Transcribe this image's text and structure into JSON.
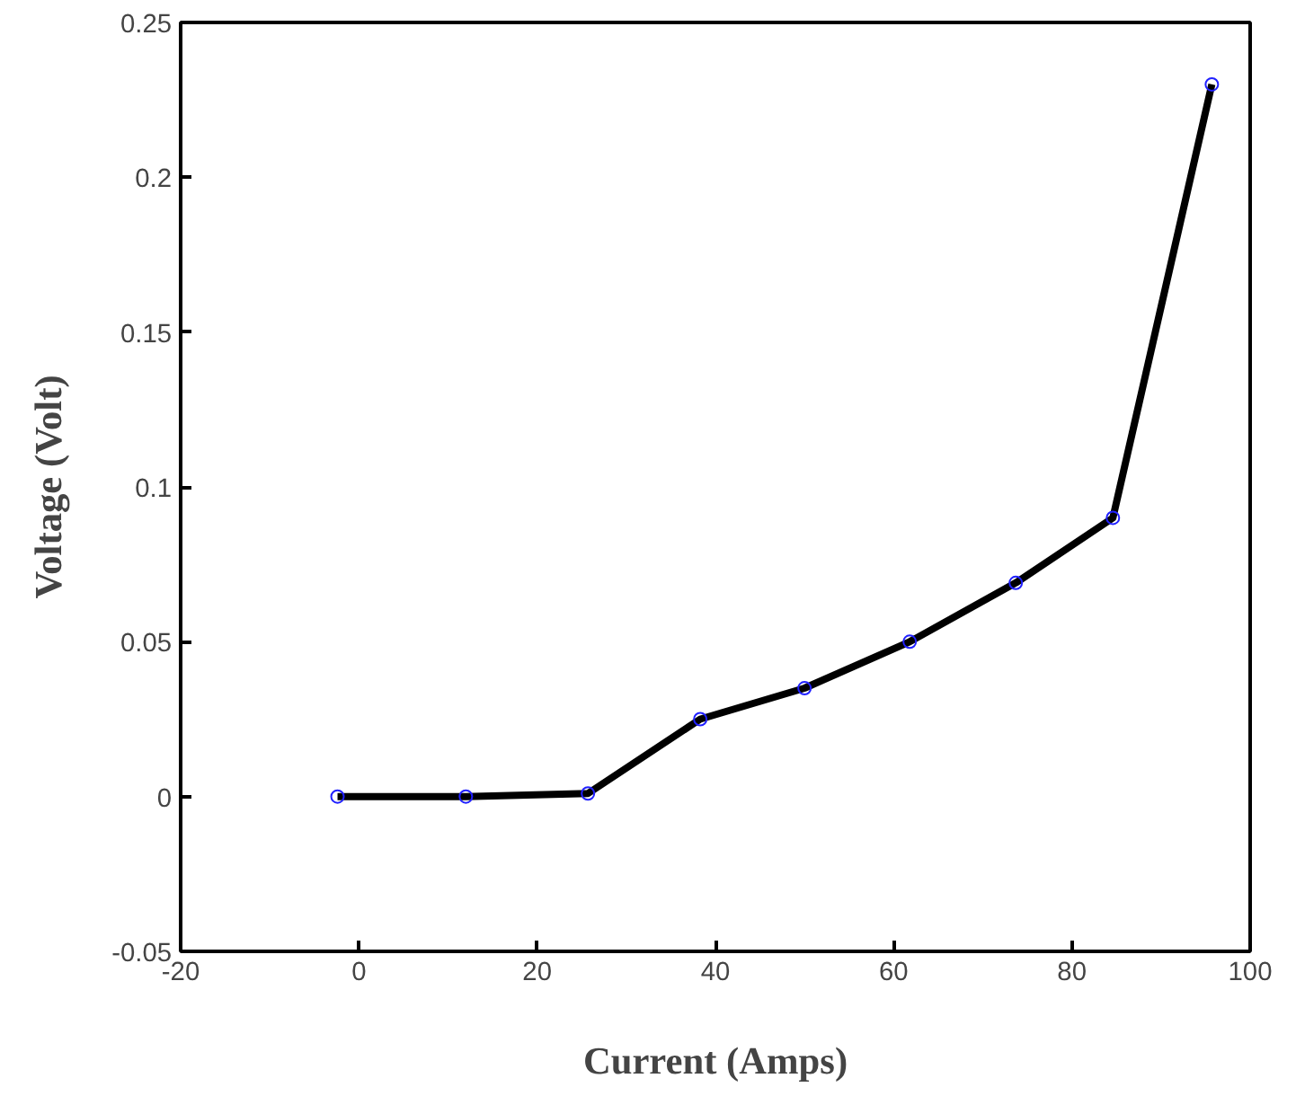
{
  "chart_data": {
    "type": "line",
    "xlabel": "Current (Amps)",
    "ylabel": "Voltage (Volt)",
    "x": [
      -2.4,
      12,
      25.7,
      38.3,
      50,
      61.8,
      73.7,
      84.6,
      95.7
    ],
    "series": [
      {
        "color": "#000000",
        "values": [
          0,
          0,
          0.001,
          0.025,
          0.035,
          0.05,
          0.069,
          0.09,
          0.23
        ]
      }
    ],
    "xlim": [
      -20,
      100
    ],
    "xticks": [
      -20,
      0,
      20,
      40,
      60,
      80,
      100
    ],
    "ylim": [
      -0.05,
      0.25
    ],
    "yticks": [
      -0.05,
      0,
      0.05,
      0.1,
      0.15,
      0.2,
      0.25
    ],
    "grid": false,
    "marker": "circle",
    "line_style": "solid"
  }
}
